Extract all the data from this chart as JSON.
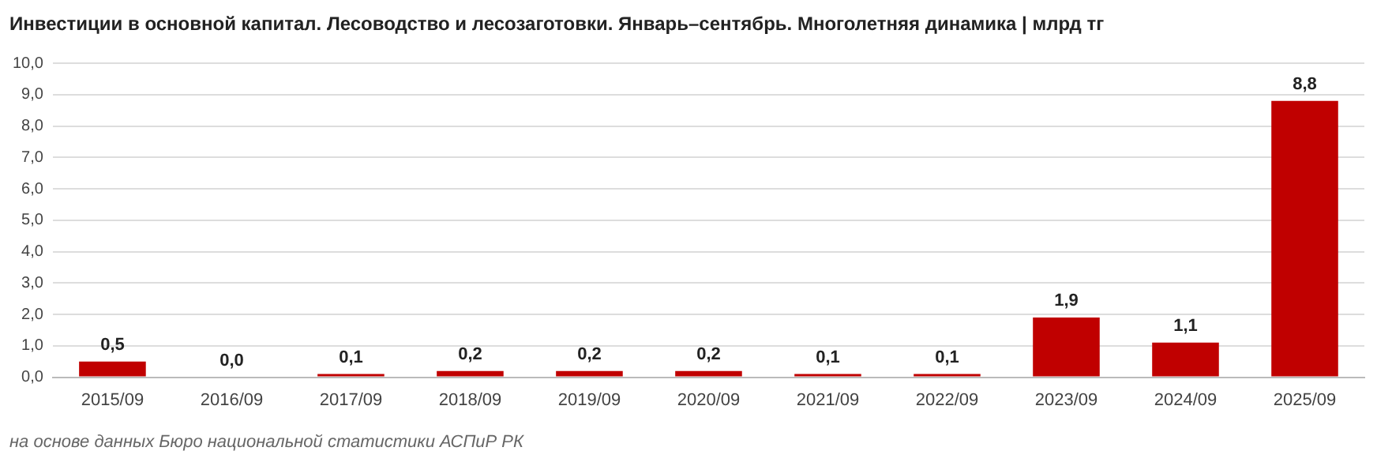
{
  "chart_data": {
    "type": "bar",
    "title": "Инвестиции в основной капитал. Лесоводство и лесозаготовки. Январь–сентябрь. Многолетняя динамика | млрд тг",
    "categories": [
      "2015/09",
      "2016/09",
      "2017/09",
      "2018/09",
      "2019/09",
      "2020/09",
      "2021/09",
      "2022/09",
      "2023/09",
      "2024/09",
      "2025/09"
    ],
    "values": [
      0.5,
      0.0,
      0.1,
      0.2,
      0.2,
      0.2,
      0.1,
      0.1,
      1.9,
      1.1,
      8.8
    ],
    "value_labels": [
      "0,5",
      "0,0",
      "0,1",
      "0,2",
      "0,2",
      "0,2",
      "0,1",
      "0,1",
      "1,9",
      "1,1",
      "8,8"
    ],
    "color": "#c00000",
    "ylim": [
      0,
      10
    ],
    "yticks": [
      {
        "value": 0,
        "label": "0,0"
      },
      {
        "value": 1,
        "label": "1,0"
      },
      {
        "value": 2,
        "label": "2,0"
      },
      {
        "value": 3,
        "label": "3,0"
      },
      {
        "value": 4,
        "label": "4,0"
      },
      {
        "value": 5,
        "label": "5,0"
      },
      {
        "value": 6,
        "label": "6,0"
      },
      {
        "value": 7,
        "label": "7,0"
      },
      {
        "value": 8,
        "label": "8,0"
      },
      {
        "value": 9,
        "label": "9,0"
      },
      {
        "value": 10,
        "label": "10,0"
      }
    ],
    "grid": "y",
    "annotations": [
      "на основе данных Бюро национальной статистики АСПиР РК"
    ]
  }
}
